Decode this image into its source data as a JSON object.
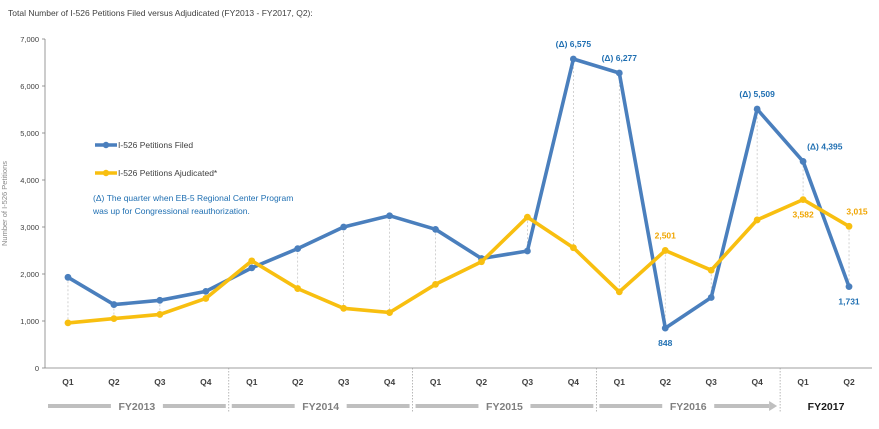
{
  "title": "Total Number of I-526 Petitions Filed versus Adjudicated (FY2013 - FY2017, Q2):",
  "chart_data": {
    "type": "line",
    "ylabel": "Number of I-526 Petitions",
    "ylim": [
      0,
      7000
    ],
    "yticks": [
      "0",
      "1,000",
      "2,000",
      "3,000",
      "4,000",
      "5,000",
      "6,000",
      "7,000"
    ],
    "quarters": [
      "Q1",
      "Q2",
      "Q3",
      "Q4",
      "Q1",
      "Q2",
      "Q3",
      "Q4",
      "Q1",
      "Q2",
      "Q3",
      "Q4",
      "Q1",
      "Q2",
      "Q3",
      "Q4",
      "Q1",
      "Q2"
    ],
    "fiscal_years": [
      {
        "label": "FY2013",
        "current": false
      },
      {
        "label": "FY2014",
        "current": false
      },
      {
        "label": "FY2015",
        "current": false
      },
      {
        "label": "FY2016",
        "current": false
      },
      {
        "label": "FY2017",
        "current": true
      }
    ],
    "series": [
      {
        "name": "I-526 Petitions Filed",
        "color": "#4a7fbd",
        "values": [
          1930,
          1350,
          1440,
          1630,
          2130,
          2540,
          3000,
          3240,
          2950,
          2330,
          2490,
          6575,
          6277,
          848,
          1500,
          5509,
          4395,
          1731
        ]
      },
      {
        "name": "I-526 Petitions Ajudicated*",
        "color": "#f8bf10",
        "values": [
          960,
          1050,
          1140,
          1480,
          2280,
          1690,
          1270,
          1180,
          1780,
          2260,
          3210,
          2560,
          1620,
          2501,
          2080,
          3150,
          3582,
          3015
        ]
      }
    ],
    "annotations": [
      {
        "series": 0,
        "index": 11,
        "text": "(Δ) 6,575",
        "pos": "above"
      },
      {
        "series": 0,
        "index": 12,
        "text": "(Δ) 6,277",
        "pos": "above"
      },
      {
        "series": 0,
        "index": 13,
        "text": "848",
        "pos": "below"
      },
      {
        "series": 0,
        "index": 15,
        "text": "(Δ) 5,509",
        "pos": "above"
      },
      {
        "series": 0,
        "index": 16,
        "text": "(Δ) 4,395",
        "pos": "right"
      },
      {
        "series": 0,
        "index": 17,
        "text": "1,731",
        "pos": "below"
      },
      {
        "series": 1,
        "index": 13,
        "text": "2,501",
        "pos": "above"
      },
      {
        "series": 1,
        "index": 16,
        "text": "3,582",
        "pos": "below"
      },
      {
        "series": 1,
        "index": 17,
        "text": "3,015",
        "pos": "above"
      }
    ],
    "note": [
      "(Δ) The quarter when EB-5 Regional Center Program",
      "was up for Congressional reauthorization."
    ],
    "grid": false,
    "legend": "left"
  }
}
